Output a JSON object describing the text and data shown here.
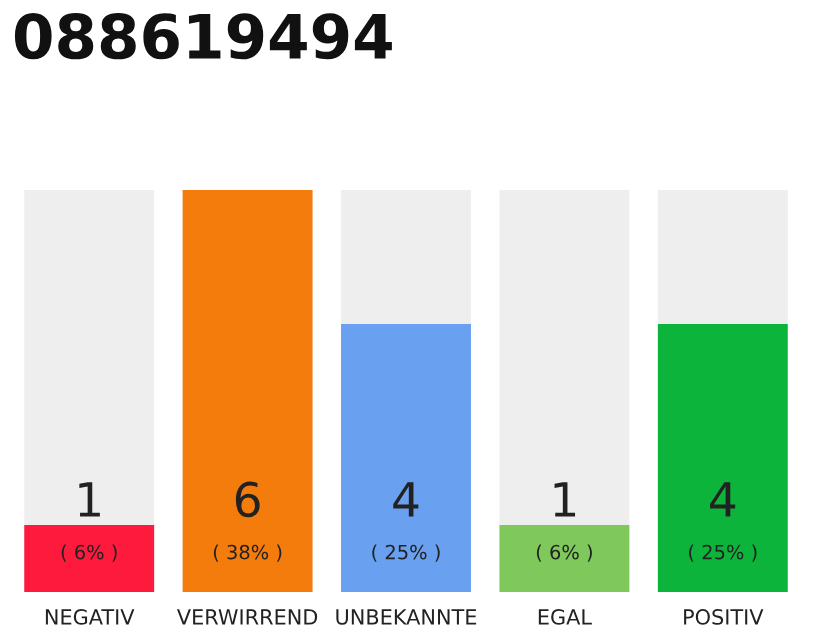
{
  "chart_data": {
    "type": "bar",
    "title": "088619494",
    "categories": [
      "NEGATIV",
      "VERWIRREND",
      "UNBEKANNTE",
      "EGAL",
      "POSITIV"
    ],
    "values": [
      1,
      6,
      4,
      1,
      4
    ],
    "colors": [
      "#fe1a3c",
      "#f47c0c",
      "#6aa0f0",
      "#7ec85c",
      "#0cb43c"
    ],
    "data_labels": true,
    "annotations": [
      "( 6% )",
      "( 38% )",
      "( 25% )",
      "( 6% )",
      "( 25% )"
    ],
    "grid": false,
    "legend": false
  }
}
